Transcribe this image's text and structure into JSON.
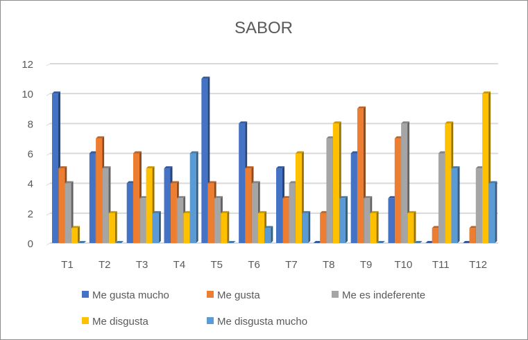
{
  "chart_data": {
    "type": "bar",
    "title": "SABOR",
    "xlabel": "",
    "ylabel": "",
    "ylim": [
      0,
      12
    ],
    "yticks": [
      0,
      2,
      4,
      6,
      8,
      10,
      12
    ],
    "grid": true,
    "legend_position": "bottom",
    "categories": [
      "T1",
      "T2",
      "T3",
      "T4",
      "T5",
      "T6",
      "T7",
      "T8",
      "T9",
      "T10",
      "T11",
      "T12"
    ],
    "series": [
      {
        "name": "Me gusta mucho",
        "color": "#4472c4",
        "values": [
          10,
          6,
          4,
          5,
          11,
          8,
          5,
          0,
          6,
          3,
          0,
          0
        ]
      },
      {
        "name": "Me gusta",
        "color": "#ed7d31",
        "values": [
          5,
          7,
          6,
          4,
          4,
          5,
          3,
          2,
          9,
          7,
          1,
          1
        ]
      },
      {
        "name": "Me es indeferente",
        "color": "#a5a5a5",
        "values": [
          4,
          5,
          3,
          3,
          3,
          4,
          4,
          7,
          3,
          8,
          6,
          5
        ]
      },
      {
        "name": "Me disgusta",
        "color": "#ffc000",
        "values": [
          1,
          2,
          5,
          2,
          2,
          2,
          6,
          8,
          2,
          2,
          8,
          10
        ]
      },
      {
        "name": "Me disgusta mucho",
        "color": "#5b9bd5",
        "values": [
          0,
          0,
          2,
          6,
          0,
          1,
          2,
          3,
          0,
          0,
          5,
          4
        ]
      }
    ]
  }
}
